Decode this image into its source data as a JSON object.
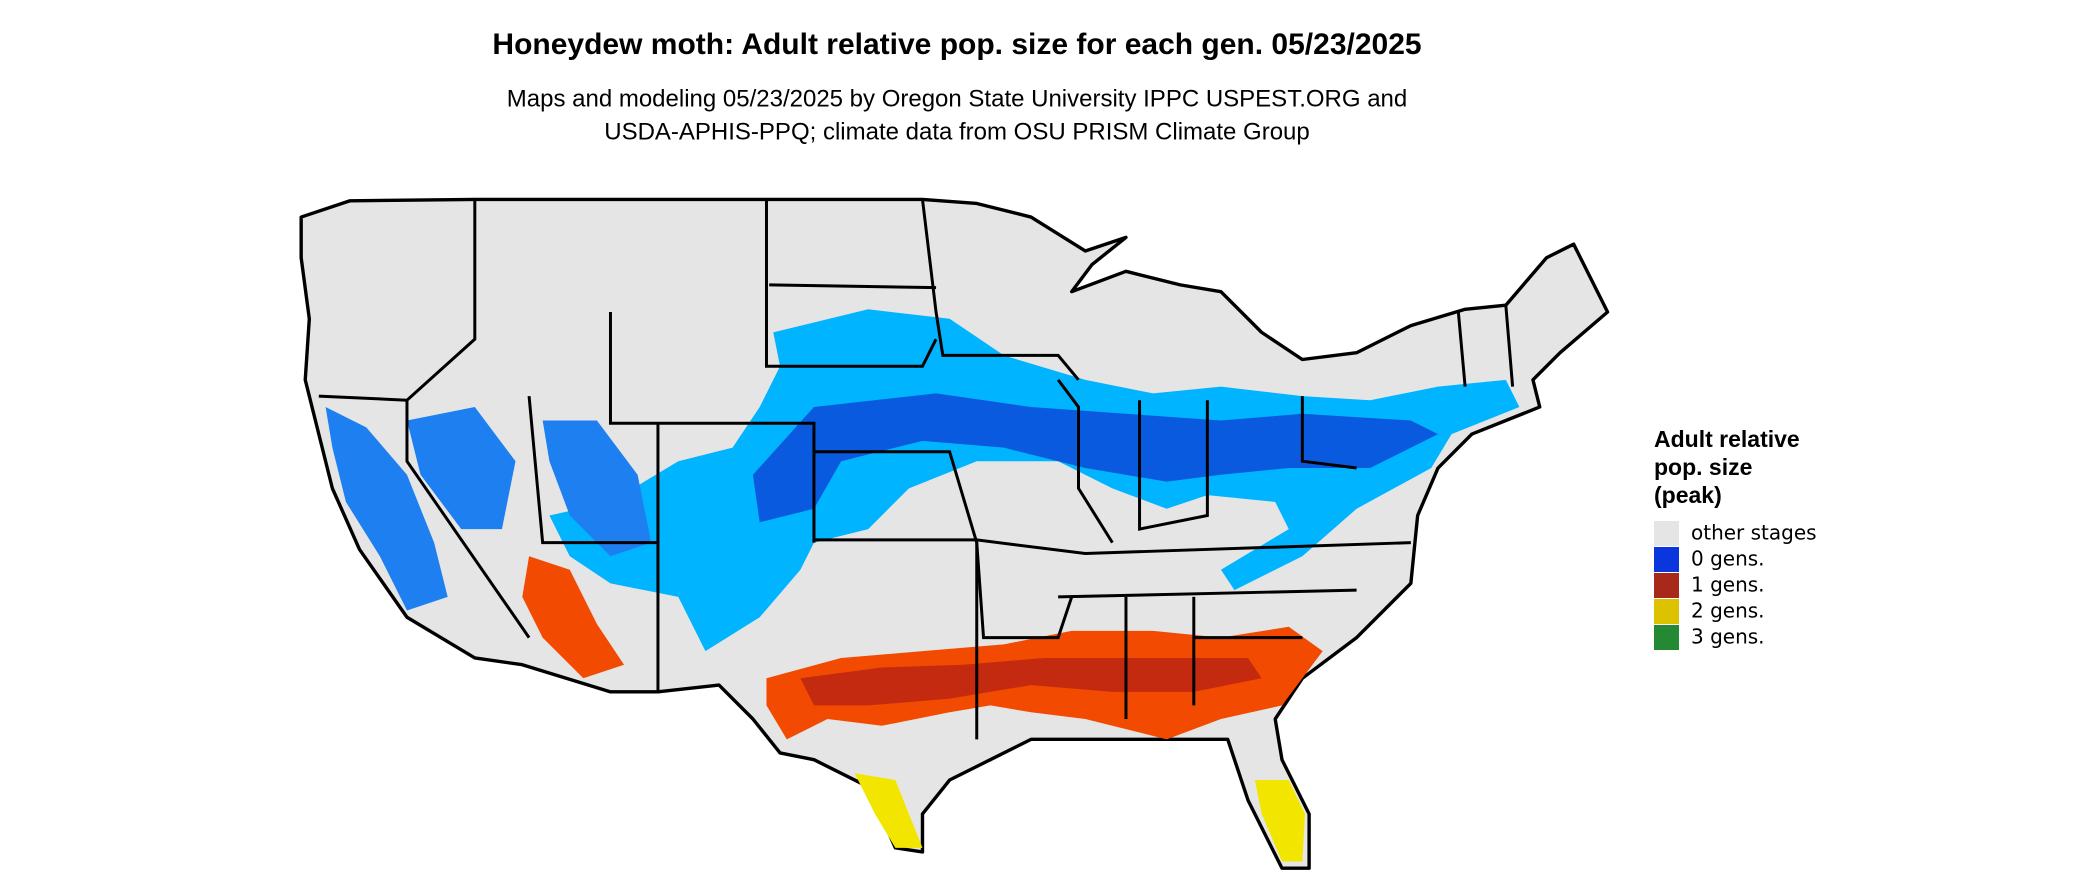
{
  "title": "Honeydew moth: Adult relative pop. size for each gen. 05/23/2025",
  "subtitle": [
    "Maps and modeling 05/23/2025 by Oregon State University IPPC USPEST.ORG and",
    "USDA-APHIS-PPQ; climate data from OSU PRISM Climate Group"
  ],
  "legend": {
    "title": [
      "Adult relative",
      "pop. size",
      "(peak)"
    ],
    "items": [
      {
        "label": "other stages",
        "color": "#e5e5e5"
      },
      {
        "label": "0 gens.",
        "color": "#0a36de"
      },
      {
        "label": "1 gens.",
        "color": "#a8281a"
      },
      {
        "label": "2 gens.",
        "color": "#dcc200"
      },
      {
        "label": "3 gens.",
        "color": "#238a33"
      }
    ]
  }
}
